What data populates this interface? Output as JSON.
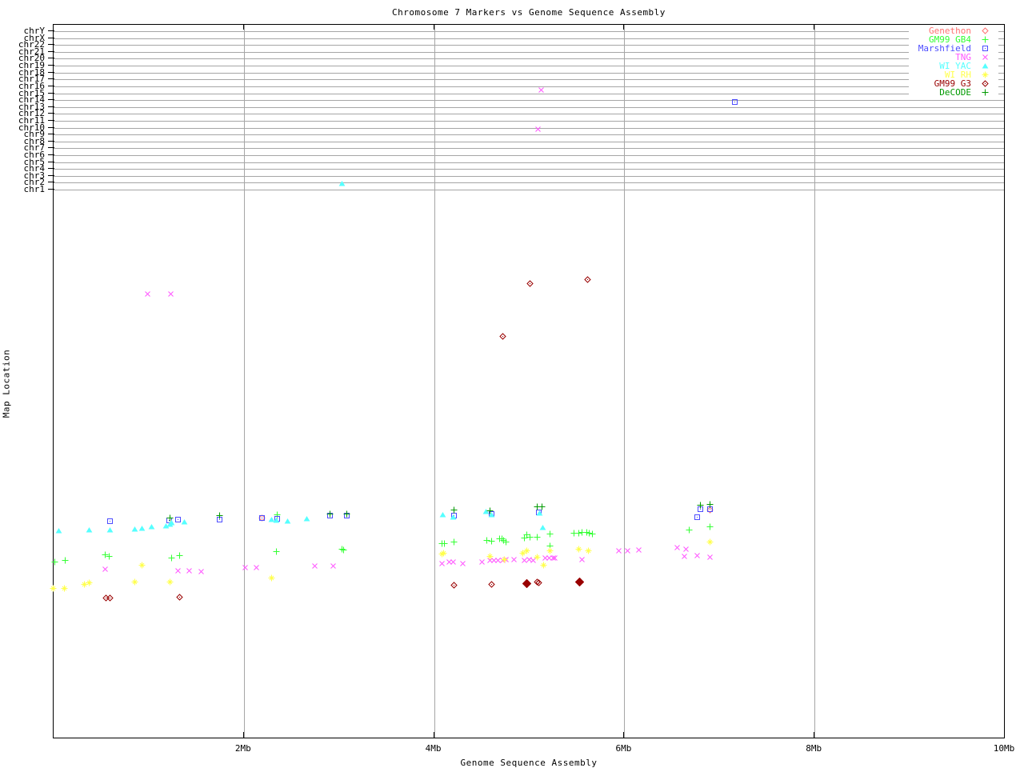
{
  "title": "Chromosome 7 Markers vs Genome Sequence Assembly",
  "x_axis": {
    "label": "Genome Sequence Assembly",
    "ticks": [
      {
        "mb": 2,
        "label": "2Mb"
      },
      {
        "mb": 4,
        "label": "4Mb"
      },
      {
        "mb": 6,
        "label": "6Mb"
      },
      {
        "mb": 8,
        "label": "8Mb"
      },
      {
        "mb": 10,
        "label": "10Mb"
      }
    ]
  },
  "y_axis": {
    "label": "Map Location",
    "chromosomes": [
      "chrY",
      "chrX",
      "chr22",
      "chr21",
      "chr20",
      "chr19",
      "chr18",
      "chr17",
      "chr16",
      "chr15",
      "chr14",
      "chr13",
      "chr12",
      "chr11",
      "chr10",
      "chr9",
      "chr8",
      "chr7",
      "chr6",
      "chr5",
      "chr4",
      "chr3",
      "chr2",
      "chr1"
    ]
  },
  "chart_data": {
    "type": "scatter",
    "title": "Chromosome 7 Markers vs Genome Sequence Assembly",
    "xlabel": "Genome Sequence Assembly",
    "ylabel": "Map Location",
    "x_unit": "Mb",
    "x_range": [
      0,
      10
    ],
    "grid": "chromosome rows at top, vertical lines every 2Mb",
    "legend_position": "top-right",
    "note": "x values in Mb; y values are vertical screen positions (no numeric y scale is shown on the chart); optional 3rd element 1 = bold/filled marker",
    "series": [
      {
        "name": "Genethon",
        "color": "#ff7272",
        "marker": "diamond",
        "points": [
          [
            2.2,
            647
          ],
          [
            6.91,
            637
          ]
        ]
      },
      {
        "name": "GM99 GB4",
        "color": "#33ff33",
        "marker": "plus",
        "points": [
          [
            0.02,
            702
          ],
          [
            0.13,
            700
          ],
          [
            0.55,
            693
          ],
          [
            0.59,
            695
          ],
          [
            1.25,
            697
          ],
          [
            1.33,
            694
          ],
          [
            2.35,
            689
          ],
          [
            2.36,
            643
          ],
          [
            3.04,
            686
          ],
          [
            3.06,
            687
          ],
          [
            4.09,
            679
          ],
          [
            4.12,
            679
          ],
          [
            4.22,
            677
          ],
          [
            4.56,
            675
          ],
          [
            4.61,
            676
          ],
          [
            4.7,
            673
          ],
          [
            4.72,
            673
          ],
          [
            4.74,
            675
          ],
          [
            4.76,
            677
          ],
          [
            4.96,
            672
          ],
          [
            4.98,
            668
          ],
          [
            5.02,
            671
          ],
          [
            5.09,
            671
          ],
          [
            5.23,
            667
          ],
          [
            5.23,
            682
          ],
          [
            5.48,
            666
          ],
          [
            5.53,
            666
          ],
          [
            5.56,
            665
          ],
          [
            5.61,
            665
          ],
          [
            5.64,
            666
          ],
          [
            5.67,
            667
          ],
          [
            6.69,
            662
          ],
          [
            6.91,
            658
          ]
        ]
      },
      {
        "name": "Marshfield",
        "color": "#4d4dff",
        "marker": "square-dot",
        "points": [
          [
            0.6,
            651
          ],
          [
            1.22,
            650
          ],
          [
            1.32,
            649
          ],
          [
            1.75,
            649
          ],
          [
            2.2,
            647
          ],
          [
            2.36,
            648
          ],
          [
            2.91,
            644
          ],
          [
            3.09,
            644
          ],
          [
            4.22,
            644
          ],
          [
            4.61,
            642
          ],
          [
            5.11,
            640
          ],
          [
            6.77,
            646
          ],
          [
            6.81,
            636
          ],
          [
            6.91,
            636
          ],
          [
            7.17,
            127
          ]
        ]
      },
      {
        "name": "TNG",
        "color": "#ff55ff",
        "marker": "x",
        "points": [
          [
            5.13,
            112
          ],
          [
            5.1,
            161
          ],
          [
            1.0,
            367
          ],
          [
            1.24,
            367
          ],
          [
            0.55,
            711
          ],
          [
            1.32,
            713
          ],
          [
            1.43,
            713
          ],
          [
            1.56,
            714
          ],
          [
            2.02,
            709
          ],
          [
            2.14,
            709
          ],
          [
            2.75,
            707
          ],
          [
            2.95,
            707
          ],
          [
            4.09,
            704
          ],
          [
            4.17,
            702
          ],
          [
            4.21,
            702
          ],
          [
            4.31,
            704
          ],
          [
            4.51,
            702
          ],
          [
            4.6,
            700
          ],
          [
            4.64,
            700
          ],
          [
            4.68,
            700
          ],
          [
            4.73,
            700
          ],
          [
            4.76,
            699
          ],
          [
            4.85,
            699
          ],
          [
            4.96,
            700
          ],
          [
            5.01,
            699
          ],
          [
            5.05,
            700
          ],
          [
            5.18,
            697
          ],
          [
            5.22,
            697
          ],
          [
            5.26,
            697
          ],
          [
            5.28,
            697
          ],
          [
            5.56,
            699
          ],
          [
            5.95,
            688
          ],
          [
            6.04,
            688
          ],
          [
            6.16,
            687
          ],
          [
            6.56,
            684
          ],
          [
            6.64,
            695
          ],
          [
            6.66,
            686
          ],
          [
            6.77,
            694
          ],
          [
            6.91,
            696
          ]
        ]
      },
      {
        "name": "WI YAC",
        "color": "#55ffff",
        "marker": "triangle",
        "points": [
          [
            0.06,
            663
          ],
          [
            0.38,
            662
          ],
          [
            0.6,
            662
          ],
          [
            0.86,
            661
          ],
          [
            0.94,
            660
          ],
          [
            1.04,
            658
          ],
          [
            1.19,
            657
          ],
          [
            1.23,
            655
          ],
          [
            1.25,
            653
          ],
          [
            1.38,
            652
          ],
          [
            2.3,
            649
          ],
          [
            2.35,
            650
          ],
          [
            2.47,
            651
          ],
          [
            2.67,
            648
          ],
          [
            3.04,
            229
          ],
          [
            4.1,
            643
          ],
          [
            4.21,
            646
          ],
          [
            4.55,
            639
          ],
          [
            4.61,
            643
          ],
          [
            5.12,
            641
          ],
          [
            5.15,
            659
          ]
        ]
      },
      {
        "name": "WI RH",
        "color": "#ffff4d",
        "marker": "asterisk",
        "points": [
          [
            0.0,
            735
          ],
          [
            0.12,
            735
          ],
          [
            0.33,
            730
          ],
          [
            0.38,
            728
          ],
          [
            0.86,
            727
          ],
          [
            0.94,
            706
          ],
          [
            1.23,
            727
          ],
          [
            2.3,
            722
          ],
          [
            4.09,
            692
          ],
          [
            4.11,
            691
          ],
          [
            4.6,
            695
          ],
          [
            4.75,
            699
          ],
          [
            4.94,
            691
          ],
          [
            4.98,
            688
          ],
          [
            5.09,
            696
          ],
          [
            5.16,
            706
          ],
          [
            5.23,
            688
          ],
          [
            5.53,
            686
          ],
          [
            5.63,
            688
          ],
          [
            6.91,
            677
          ]
        ]
      },
      {
        "name": "GM99 G3",
        "color": "#990000",
        "marker": "diamond-dot",
        "points": [
          [
            0.56,
            747
          ],
          [
            0.6,
            747
          ],
          [
            1.33,
            746
          ],
          [
            4.22,
            731
          ],
          [
            4.61,
            730
          ],
          [
            4.73,
            420
          ],
          [
            4.98,
            729,
            1
          ],
          [
            5.02,
            354
          ],
          [
            5.09,
            727
          ],
          [
            5.11,
            728
          ],
          [
            5.54,
            727,
            1
          ],
          [
            5.62,
            349
          ]
        ]
      },
      {
        "name": "DeCODE",
        "color": "#009900",
        "marker": "plus",
        "points": [
          [
            1.23,
            647
          ],
          [
            1.75,
            644
          ],
          [
            2.91,
            642
          ],
          [
            3.09,
            642
          ],
          [
            4.22,
            637
          ],
          [
            4.6,
            638
          ],
          [
            5.09,
            633
          ],
          [
            5.14,
            633
          ],
          [
            6.81,
            631
          ],
          [
            6.91,
            630
          ]
        ]
      }
    ]
  }
}
